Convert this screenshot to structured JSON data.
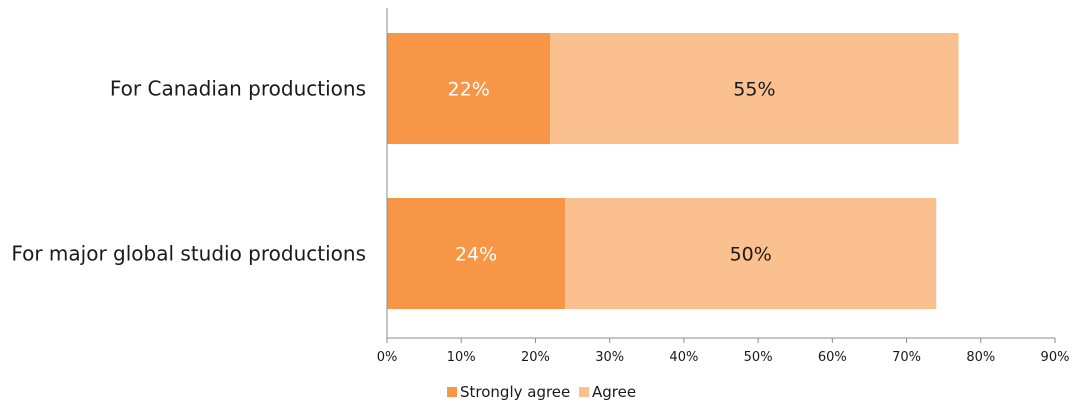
{
  "chart_data": {
    "type": "bar",
    "orientation": "horizontal",
    "stacked": true,
    "categories": [
      "For Canadian productions",
      "For major global studio productions"
    ],
    "series": [
      {
        "name": "Strongly agree",
        "values": [
          22,
          24
        ],
        "labels": [
          "22%",
          "24%"
        ],
        "color": "#f79646",
        "label_color": "#ffffff"
      },
      {
        "name": "Agree",
        "values": [
          55,
          50
        ],
        "labels": [
          "55%",
          "50%"
        ],
        "color": "#fac090",
        "label_color": "#1a1a1a"
      }
    ],
    "xlim": [
      0,
      90
    ],
    "x_ticks": [
      0,
      10,
      20,
      30,
      40,
      50,
      60,
      70,
      80,
      90
    ],
    "x_tick_labels": [
      "0%",
      "10%",
      "20%",
      "30%",
      "40%",
      "50%",
      "60%",
      "70%",
      "80%",
      "90%"
    ],
    "grid": false,
    "legend_position": "bottom-center"
  }
}
